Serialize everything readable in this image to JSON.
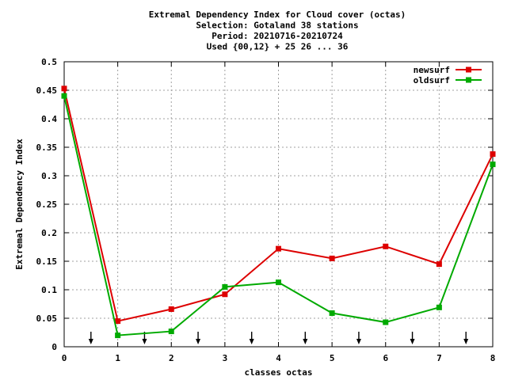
{
  "chart_data": {
    "type": "line",
    "title_lines": [
      "Extremal Dependency Index  for Cloud cover (octas)",
      "Selection: Gotaland     38 stations",
      "Period: 20210716-20210724",
      "Used {00,12} + 25 26 ... 36"
    ],
    "xlabel": "classes octas",
    "ylabel": "Extremal Dependency Index",
    "xlim": [
      0,
      8
    ],
    "ylim": [
      0,
      0.5
    ],
    "x_ticks": [
      "0",
      "1",
      "2",
      "3",
      "4",
      "5",
      "6",
      "7",
      "8"
    ],
    "y_ticks": [
      "0",
      "0.05",
      "0.1",
      "0.15",
      "0.2",
      "0.25",
      "0.3",
      "0.35",
      "0.4",
      "0.45",
      "0.5"
    ],
    "grid": true,
    "legend_position": "top-right",
    "x": [
      0,
      1,
      2,
      3,
      4,
      5,
      6,
      7,
      8
    ],
    "series": [
      {
        "name": "newsurf",
        "color": "#dd0000",
        "values": [
          0.453,
          0.045,
          0.066,
          0.092,
          0.172,
          0.155,
          0.176,
          0.145,
          0.338
        ]
      },
      {
        "name": "oldsurf",
        "color": "#00aa00",
        "values": [
          0.44,
          0.02,
          0.027,
          0.105,
          0.113,
          0.059,
          0.043,
          0.069,
          0.32
        ]
      }
    ],
    "arrow_markers_x": [
      0.5,
      1.5,
      2.5,
      3.5,
      4.5,
      5.5,
      6.5,
      7.5
    ]
  }
}
